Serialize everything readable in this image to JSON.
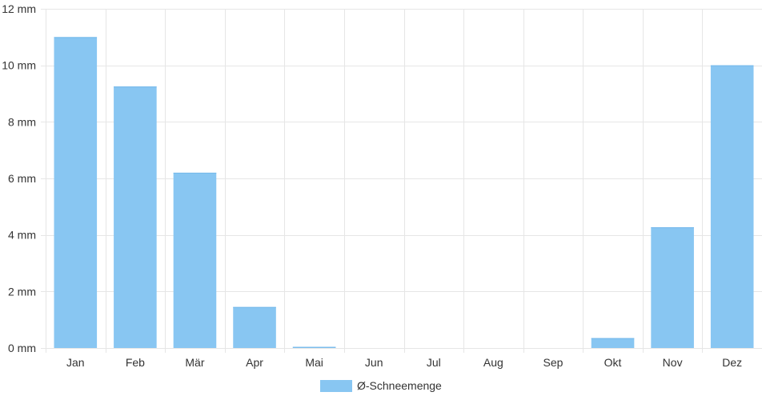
{
  "chart_data": {
    "type": "bar",
    "categories": [
      "Jan",
      "Feb",
      "Mär",
      "Apr",
      "Mai",
      "Jun",
      "Jul",
      "Aug",
      "Sep",
      "Okt",
      "Nov",
      "Dez"
    ],
    "series": [
      {
        "name": "Ø-Schneemenge",
        "values": [
          11.0,
          9.25,
          6.2,
          1.45,
          0.04,
          0,
          0,
          0,
          0,
          0.35,
          4.27,
          10.0
        ],
        "color": "#88c6f2"
      }
    ],
    "ylim": [
      0,
      12
    ],
    "yticks": [
      0,
      2,
      4,
      6,
      8,
      10,
      12
    ],
    "ytick_labels": [
      "0 mm",
      "2 mm",
      "4 mm",
      "6 mm",
      "8 mm",
      "10 mm",
      "12 mm"
    ],
    "grid": true,
    "legend_position": "bottom-center"
  }
}
